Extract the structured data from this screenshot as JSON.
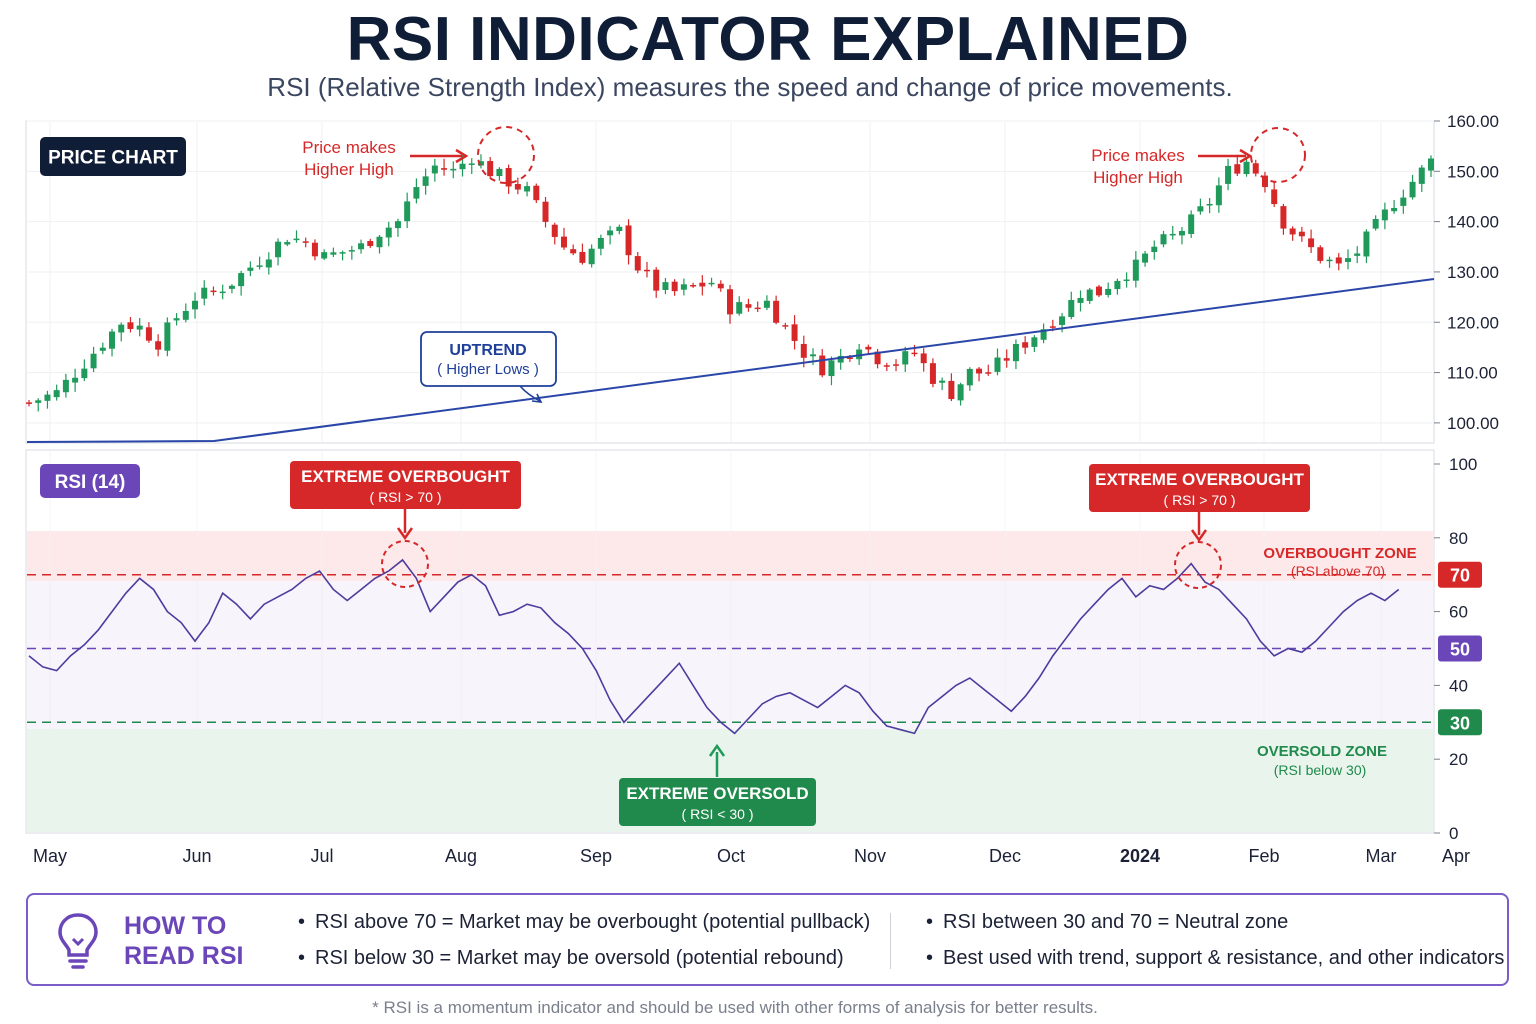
{
  "title": "RSI INDICATOR EXPLAINED",
  "subtitle": "RSI (Relative Strength Index) measures the speed and change of price movements.",
  "chart_data": [
    {
      "type": "candlestick",
      "panel_label": "PRICE CHART",
      "y_ticks": [
        "100.00",
        "110.00",
        "120.00",
        "130.00",
        "140.00",
        "150.00",
        "160.00"
      ],
      "ylim": [
        96,
        160
      ],
      "x_ticks": [
        "May",
        "Jun",
        "Jul",
        "Aug",
        "Sep",
        "Oct",
        "Nov",
        "Dec",
        "2024",
        "Feb",
        "Mar",
        "Apr"
      ],
      "close_path": [
        [
          0,
          104
        ],
        [
          6,
          106
        ],
        [
          12,
          112
        ],
        [
          16,
          116
        ],
        [
          20,
          120
        ],
        [
          24,
          119
        ],
        [
          28,
          116
        ],
        [
          32,
          121
        ],
        [
          36,
          125
        ],
        [
          40,
          126
        ],
        [
          44,
          128
        ],
        [
          48,
          131
        ],
        [
          52,
          134
        ],
        [
          56,
          137
        ],
        [
          60,
          136
        ],
        [
          64,
          133
        ],
        [
          68,
          134
        ],
        [
          72,
          135
        ],
        [
          76,
          138
        ],
        [
          80,
          140
        ],
        [
          84,
          147
        ],
        [
          88,
          151
        ],
        [
          92,
          150
        ],
        [
          96,
          153
        ],
        [
          100,
          150
        ],
        [
          104,
          148
        ],
        [
          108,
          146
        ],
        [
          112,
          140
        ],
        [
          116,
          135
        ],
        [
          120,
          133
        ],
        [
          124,
          136
        ],
        [
          128,
          138
        ],
        [
          132,
          131
        ],
        [
          136,
          127
        ],
        [
          140,
          126
        ],
        [
          144,
          127
        ],
        [
          148,
          128
        ],
        [
          152,
          123
        ],
        [
          156,
          123
        ],
        [
          160,
          124
        ],
        [
          164,
          119
        ],
        [
          168,
          114
        ],
        [
          172,
          111
        ],
        [
          176,
          113
        ],
        [
          180,
          116
        ],
        [
          184,
          113
        ],
        [
          188,
          112
        ],
        [
          192,
          114
        ],
        [
          196,
          109
        ],
        [
          200,
          106
        ],
        [
          204,
          110
        ],
        [
          208,
          110
        ],
        [
          212,
          113
        ],
        [
          216,
          116
        ],
        [
          220,
          119
        ],
        [
          224,
          122
        ],
        [
          228,
          126
        ],
        [
          232,
          126
        ],
        [
          236,
          129
        ],
        [
          240,
          131
        ],
        [
          244,
          135
        ],
        [
          248,
          137
        ],
        [
          252,
          140
        ],
        [
          256,
          144
        ],
        [
          260,
          150
        ],
        [
          264,
          152
        ],
        [
          268,
          148
        ],
        [
          272,
          140
        ],
        [
          276,
          136
        ],
        [
          280,
          133
        ],
        [
          284,
          131
        ],
        [
          288,
          134
        ],
        [
          292,
          139
        ],
        [
          296,
          144
        ],
        [
          300,
          148
        ],
        [
          304,
          152
        ]
      ],
      "annotations": [
        {
          "text_lines": [
            "Price makes",
            "Higher High"
          ],
          "color": "#d62828"
        },
        {
          "text_lines": [
            "Price makes",
            "Higher High"
          ],
          "color": "#d62828"
        },
        {
          "text_lines": [
            "UPTREND",
            "( Higher Lows )"
          ],
          "color": "#1f3f99"
        }
      ]
    },
    {
      "type": "line",
      "panel_label": "RSI (14)",
      "y_ticks": [
        "0",
        "20",
        "40",
        "60",
        "80",
        "100"
      ],
      "ylim": [
        0,
        100
      ],
      "levels": [
        {
          "value": 70,
          "label": "70",
          "color": "#d62828"
        },
        {
          "value": 50,
          "label": "50",
          "color": "#6a46b8"
        },
        {
          "value": 30,
          "label": "30",
          "color": "#1f8a4c"
        }
      ],
      "zones": [
        {
          "name": "OVERBOUGHT ZONE",
          "desc": "(RSI above 70)",
          "color": "#d62828"
        },
        {
          "name": "OVERSOLD ZONE",
          "desc": "(RSI below 30)",
          "color": "#1f8a4c"
        }
      ],
      "callouts": [
        {
          "title": "EXTREME OVERBOUGHT",
          "desc": "( RSI > 70 )",
          "color": "#d62828"
        },
        {
          "title": "EXTREME OVERBOUGHT",
          "desc": "( RSI > 70 )",
          "color": "#d62828"
        },
        {
          "title": "EXTREME OVERSOLD",
          "desc": "( RSI < 30 )",
          "color": "#1f8a4c"
        }
      ],
      "series": [
        {
          "color": "#4b3c9e",
          "points": [
            [
              0,
              48
            ],
            [
              3,
              45
            ],
            [
              6,
              44
            ],
            [
              9,
              48
            ],
            [
              12,
              51
            ],
            [
              15,
              55
            ],
            [
              18,
              60
            ],
            [
              21,
              65
            ],
            [
              24,
              69
            ],
            [
              27,
              66
            ],
            [
              30,
              60
            ],
            [
              33,
              57
            ],
            [
              36,
              52
            ],
            [
              39,
              57
            ],
            [
              42,
              65
            ],
            [
              45,
              62
            ],
            [
              48,
              58
            ],
            [
              51,
              62
            ],
            [
              54,
              64
            ],
            [
              57,
              66
            ],
            [
              60,
              69
            ],
            [
              63,
              71
            ],
            [
              66,
              66
            ],
            [
              69,
              63
            ],
            [
              72,
              66
            ],
            [
              75,
              69
            ],
            [
              78,
              71
            ],
            [
              81,
              74
            ],
            [
              84,
              69
            ],
            [
              87,
              60
            ],
            [
              90,
              64
            ],
            [
              93,
              68
            ],
            [
              96,
              70
            ],
            [
              99,
              67
            ],
            [
              102,
              59
            ],
            [
              105,
              60
            ],
            [
              108,
              62
            ],
            [
              111,
              61
            ],
            [
              114,
              57
            ],
            [
              117,
              54
            ],
            [
              120,
              50
            ],
            [
              123,
              44
            ],
            [
              126,
              36
            ],
            [
              129,
              30
            ],
            [
              132,
              34
            ],
            [
              135,
              38
            ],
            [
              138,
              42
            ],
            [
              141,
              46
            ],
            [
              144,
              40
            ],
            [
              147,
              34
            ],
            [
              150,
              30
            ],
            [
              153,
              27
            ],
            [
              156,
              31
            ],
            [
              159,
              35
            ],
            [
              162,
              37
            ],
            [
              165,
              38
            ],
            [
              168,
              36
            ],
            [
              171,
              34
            ],
            [
              174,
              37
            ],
            [
              177,
              40
            ],
            [
              180,
              38
            ],
            [
              183,
              33
            ],
            [
              186,
              29
            ],
            [
              189,
              28
            ],
            [
              192,
              27
            ],
            [
              195,
              34
            ],
            [
              198,
              37
            ],
            [
              201,
              40
            ],
            [
              204,
              42
            ],
            [
              207,
              39
            ],
            [
              210,
              36
            ],
            [
              213,
              33
            ],
            [
              216,
              37
            ],
            [
              219,
              42
            ],
            [
              222,
              48
            ],
            [
              225,
              53
            ],
            [
              228,
              58
            ],
            [
              231,
              62
            ],
            [
              234,
              66
            ],
            [
              237,
              69
            ],
            [
              240,
              64
            ],
            [
              243,
              67
            ],
            [
              246,
              66
            ],
            [
              249,
              69
            ],
            [
              252,
              73
            ],
            [
              255,
              68
            ],
            [
              258,
              66
            ],
            [
              261,
              62
            ],
            [
              264,
              58
            ],
            [
              267,
              52
            ],
            [
              270,
              48
            ],
            [
              273,
              50
            ],
            [
              276,
              49
            ],
            [
              279,
              52
            ],
            [
              282,
              56
            ],
            [
              285,
              60
            ],
            [
              288,
              63
            ],
            [
              291,
              65
            ],
            [
              294,
              63
            ],
            [
              297,
              66
            ]
          ]
        }
      ]
    }
  ],
  "legend": {
    "heading": "HOW TO READ RSI",
    "tips": [
      "RSI above 70 = Market may be overbought (potential pullback)",
      "RSI below 30 = Market may be oversold (potential rebound)",
      "RSI between 30 and 70 = Neutral zone",
      "Best used with trend, support & resistance, and other indicators"
    ]
  },
  "footnote": "* RSI is a momentum indicator and should be used with other forms of analysis for better results.",
  "colors": {
    "up": "#1f9a5a",
    "down": "#d62828",
    "navy": "#0f1d36",
    "purple": "#6a46b8",
    "trend": "#2a46a8"
  }
}
